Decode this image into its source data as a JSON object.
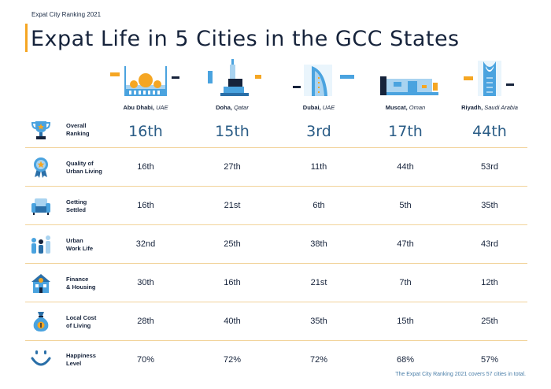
{
  "header": {
    "subtitle": "Expat City Ranking 2021",
    "title": "Expat Life in 5 Cities in the GCC States"
  },
  "colors": {
    "accent": "#f5a623",
    "navy": "#16233b",
    "blue": "#4aa3df",
    "divider": "#f2d39a"
  },
  "cities": [
    {
      "city": "Abu Dhabi,",
      "country": "UAE",
      "illustration": "mosque-icon"
    },
    {
      "city": "Doha,",
      "country": "Qatar",
      "illustration": "tower-icon"
    },
    {
      "city": "Dubai,",
      "country": "UAE",
      "illustration": "burj-icon"
    },
    {
      "city": "Muscat,",
      "country": "Oman",
      "illustration": "fort-icon"
    },
    {
      "city": "Riyadh,",
      "country": "Saudi Arabia",
      "illustration": "kingdom-tower-icon"
    }
  ],
  "rows": [
    {
      "icon": "trophy-icon",
      "label1": "Overall",
      "label2": "Ranking",
      "values": [
        "16th",
        "15th",
        "3rd",
        "17th",
        "44th"
      ]
    },
    {
      "icon": "award-icon",
      "label1": "Quality of",
      "label2": "Urban Living",
      "values": [
        "16th",
        "27th",
        "11th",
        "44th",
        "53rd"
      ]
    },
    {
      "icon": "sofa-icon",
      "label1": "Getting",
      "label2": "Settled",
      "values": [
        "16th",
        "21st",
        "6th",
        "5th",
        "35th"
      ]
    },
    {
      "icon": "people-icon",
      "label1": "Urban",
      "label2": "Work Life",
      "values": [
        "32nd",
        "25th",
        "38th",
        "47th",
        "43rd"
      ]
    },
    {
      "icon": "house-icon",
      "label1": "Finance",
      "label2": "& Housing",
      "values": [
        "30th",
        "16th",
        "21st",
        "7th",
        "12th"
      ]
    },
    {
      "icon": "moneybag-icon",
      "label1": "Local Cost",
      "label2": "of Living",
      "values": [
        "28th",
        "40th",
        "35th",
        "15th",
        "25th"
      ]
    },
    {
      "icon": "smile-icon",
      "label1": "Happiness",
      "label2": "Level",
      "values": [
        "70%",
        "72%",
        "72%",
        "68%",
        "57%"
      ]
    }
  ],
  "footnote": "The Expat City Ranking 2021 covers 57 cities in total."
}
